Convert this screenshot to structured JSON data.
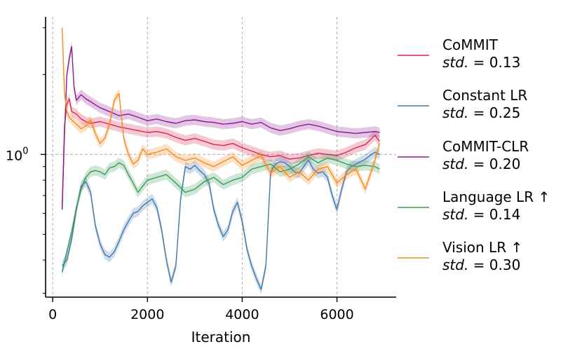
{
  "chart_data": {
    "type": "line",
    "xlabel": "Iteration",
    "ylabel": "",
    "xlim": [
      -150,
      7250
    ],
    "ylim": [
      0.29,
      3.3
    ],
    "yscale": "log",
    "x_ticks": [
      0,
      2000,
      4000,
      6000
    ],
    "x_tick_labels": [
      "0",
      "2000",
      "4000",
      "6000"
    ],
    "y_ticks": [
      1
    ],
    "y_tick_labels": [
      "10",
      "0"
    ],
    "grid": "vertical dashed at x ticks; horizontal dashed at y = 1",
    "legend_position": "right, outside plot",
    "series": [
      {
        "name": "CoMMIT",
        "std_label": "std.",
        "std_value": "= 0.13",
        "color": "#d62754",
        "x": [
          200,
          250,
          300,
          350,
          400,
          500,
          600,
          700,
          800,
          1000,
          1200,
          1400,
          1600,
          1800,
          2000,
          2200,
          2400,
          2600,
          2800,
          3000,
          3200,
          3400,
          3600,
          3800,
          4000,
          4200,
          4400,
          4600,
          4800,
          5000,
          5200,
          5400,
          5600,
          5800,
          6000,
          6200,
          6400,
          6600,
          6800,
          6900
        ],
        "y": [
          0.62,
          1.28,
          1.55,
          1.62,
          1.45,
          1.42,
          1.36,
          1.33,
          1.31,
          1.33,
          1.3,
          1.27,
          1.25,
          1.23,
          1.21,
          1.22,
          1.2,
          1.16,
          1.13,
          1.15,
          1.12,
          1.09,
          1.08,
          1.1,
          1.06,
          1.03,
          1.0,
          0.98,
          0.99,
          0.96,
          0.97,
          0.99,
          1.01,
          1.0,
          0.99,
          1.02,
          1.06,
          1.09,
          1.18,
          1.12
        ]
      },
      {
        "name": "Constant LR",
        "std_label": "std.",
        "std_value": "= 0.25",
        "color": "#3f78aa",
        "x": [
          200,
          300,
          400,
          500,
          600,
          700,
          800,
          900,
          1000,
          1100,
          1200,
          1300,
          1400,
          1500,
          1600,
          1700,
          1800,
          1900,
          2000,
          2100,
          2200,
          2300,
          2400,
          2500,
          2600,
          2700,
          2800,
          2900,
          3000,
          3100,
          3200,
          3300,
          3400,
          3500,
          3600,
          3700,
          3800,
          3900,
          4000,
          4100,
          4200,
          4300,
          4400,
          4500,
          4600,
          4700,
          4800,
          4900,
          5000,
          5100,
          5200,
          5300,
          5400,
          5500,
          5600,
          5700,
          5800,
          5900,
          6000,
          6100,
          6200,
          6300,
          6400,
          6500,
          6600,
          6700,
          6800,
          6900
        ],
        "y": [
          0.38,
          0.4,
          0.48,
          0.62,
          0.76,
          0.79,
          0.72,
          0.54,
          0.46,
          0.42,
          0.41,
          0.43,
          0.47,
          0.52,
          0.56,
          0.6,
          0.61,
          0.64,
          0.66,
          0.68,
          0.63,
          0.52,
          0.4,
          0.33,
          0.38,
          0.68,
          0.9,
          0.88,
          0.91,
          0.87,
          0.84,
          0.78,
          0.62,
          0.54,
          0.49,
          0.52,
          0.61,
          0.66,
          0.56,
          0.44,
          0.38,
          0.34,
          0.31,
          0.38,
          0.86,
          0.92,
          0.94,
          0.93,
          0.9,
          0.86,
          0.85,
          0.9,
          0.95,
          0.88,
          0.85,
          0.86,
          0.82,
          0.7,
          0.62,
          0.74,
          0.86,
          0.9,
          0.92,
          0.94,
          0.96,
          0.99,
          1.02,
          1.0
        ]
      },
      {
        "name": "CoMMIT-CLR",
        "std_label": "std.",
        "std_value": "= 0.20",
        "color": "#8c1a94",
        "x": [
          200,
          250,
          300,
          350,
          400,
          450,
          500,
          600,
          700,
          800,
          1000,
          1200,
          1400,
          1600,
          1800,
          2000,
          2200,
          2400,
          2600,
          2800,
          3000,
          3200,
          3400,
          3600,
          3800,
          4000,
          4200,
          4400,
          4600,
          4800,
          5000,
          5200,
          5400,
          5600,
          5800,
          6000,
          6200,
          6400,
          6600,
          6800,
          6900
        ],
        "y": [
          0.62,
          1.2,
          2.0,
          2.3,
          2.55,
          1.8,
          1.6,
          1.68,
          1.62,
          1.58,
          1.5,
          1.45,
          1.4,
          1.42,
          1.38,
          1.34,
          1.36,
          1.33,
          1.31,
          1.34,
          1.35,
          1.33,
          1.32,
          1.3,
          1.31,
          1.33,
          1.3,
          1.32,
          1.26,
          1.23,
          1.25,
          1.28,
          1.3,
          1.28,
          1.25,
          1.22,
          1.21,
          1.2,
          1.21,
          1.22,
          1.21
        ]
      },
      {
        "name": "Language LR ↑",
        "std_label": "std.",
        "std_value": "= 0.14",
        "color": "#3a9a5a",
        "x": [
          200,
          300,
          400,
          500,
          600,
          700,
          800,
          900,
          1000,
          1100,
          1200,
          1300,
          1400,
          1500,
          1600,
          1700,
          1800,
          1900,
          2000,
          2200,
          2400,
          2600,
          2800,
          3000,
          3200,
          3400,
          3600,
          3800,
          4000,
          4200,
          4400,
          4600,
          4800,
          5000,
          5200,
          5400,
          5600,
          5800,
          6000,
          6200,
          6400,
          6600,
          6800,
          6900
        ],
        "y": [
          0.36,
          0.43,
          0.51,
          0.63,
          0.74,
          0.82,
          0.86,
          0.87,
          0.86,
          0.84,
          0.89,
          0.9,
          0.93,
          0.91,
          0.84,
          0.78,
          0.72,
          0.76,
          0.8,
          0.82,
          0.84,
          0.78,
          0.72,
          0.74,
          0.79,
          0.82,
          0.77,
          0.8,
          0.82,
          0.88,
          0.9,
          0.92,
          0.86,
          0.88,
          0.92,
          0.98,
          0.93,
          0.97,
          0.95,
          0.92,
          0.9,
          0.91,
          0.9,
          0.88
        ]
      },
      {
        "name": "Vision LR ↑",
        "std_label": "std.",
        "std_value": "= 0.30",
        "color": "#f68b1e",
        "x": [
          200,
          250,
          300,
          350,
          400,
          500,
          600,
          700,
          800,
          900,
          1000,
          1100,
          1200,
          1300,
          1400,
          1500,
          1600,
          1700,
          1800,
          1900,
          2000,
          2200,
          2400,
          2600,
          2800,
          3000,
          3200,
          3400,
          3600,
          3800,
          4000,
          4200,
          4400,
          4600,
          4800,
          5000,
          5200,
          5400,
          5600,
          5800,
          6000,
          6200,
          6400,
          6600,
          6800,
          6900
        ],
        "y": [
          3.0,
          1.7,
          1.45,
          1.38,
          1.35,
          1.3,
          1.25,
          1.28,
          1.35,
          1.2,
          1.1,
          1.15,
          1.3,
          1.6,
          1.7,
          1.15,
          1.0,
          0.92,
          0.95,
          1.05,
          1.0,
          1.02,
          1.05,
          0.98,
          0.95,
          0.97,
          0.93,
          0.9,
          0.94,
          0.98,
          0.91,
          0.95,
          0.99,
          0.85,
          0.9,
          0.82,
          0.86,
          0.8,
          0.88,
          0.9,
          0.78,
          0.84,
          0.88,
          0.74,
          0.95,
          1.1
        ]
      }
    ]
  }
}
